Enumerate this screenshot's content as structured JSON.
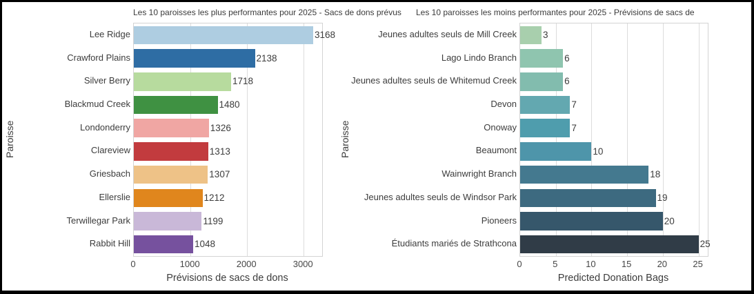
{
  "style": {
    "background": "#ffffff",
    "frame_color": "#000000",
    "grid_color": "#dcdcdc",
    "axis_color": "#d3d3d3",
    "text_color": "#3c3c3c"
  },
  "chart_data": [
    {
      "type": "bar",
      "orientation": "horizontal",
      "title": "Les 10 paroisses les plus performantes pour 2025 - Sacs de dons prévus",
      "xlabel": "Prévisions de sacs de dons",
      "ylabel": "Paroisse",
      "categories": [
        "Lee Ridge",
        "Crawford Plains",
        "Silver Berry",
        "Blackmud Creek",
        "Londonderry",
        "Clareview",
        "Griesbach",
        "Ellerslie",
        "Terwillegar Park",
        "Rabbit Hill"
      ],
      "values": [
        3168,
        2138,
        1718,
        1480,
        1326,
        1313,
        1307,
        1212,
        1199,
        1048
      ],
      "bar_colors": [
        "#aecde1",
        "#2e6da4",
        "#b7db9e",
        "#3f9142",
        "#f0a6a3",
        "#c23b3e",
        "#eec287",
        "#e0861d",
        "#c9b8d8",
        "#76519e"
      ],
      "xlim": [
        0,
        3326
      ],
      "xticks": [
        0,
        1000,
        2000,
        3000
      ],
      "grid": true,
      "legend": null
    },
    {
      "type": "bar",
      "orientation": "horizontal",
      "title": "Les 10 paroisses les moins performantes pour 2025 - Prévisions de sacs de",
      "xlabel": "Predicted Donation Bags",
      "ylabel": "Paroisse",
      "categories": [
        "Jeunes adultes seuls de Mill Creek",
        "Lago Lindo Branch",
        "Jeunes adultes seuls de Whitemud Creek",
        "Devon",
        "Onoway",
        "Beaumont",
        "Wainwright Branch",
        "Jeunes adultes seuls de Windsor Park",
        "Pioneers",
        "Étudiants mariés de Strathcona"
      ],
      "values": [
        3,
        6,
        6,
        7,
        7,
        10,
        18,
        19,
        20,
        25
      ],
      "bar_colors": [
        "#a8cfad",
        "#8fc5af",
        "#82bcae",
        "#63a8b0",
        "#4f9dad",
        "#4e95aa",
        "#44798f",
        "#3d6a80",
        "#36576b",
        "#303c47"
      ],
      "xlim": [
        0,
        26.3
      ],
      "xticks": [
        0,
        5,
        10,
        15,
        20,
        25
      ],
      "grid": true,
      "legend": null
    }
  ]
}
